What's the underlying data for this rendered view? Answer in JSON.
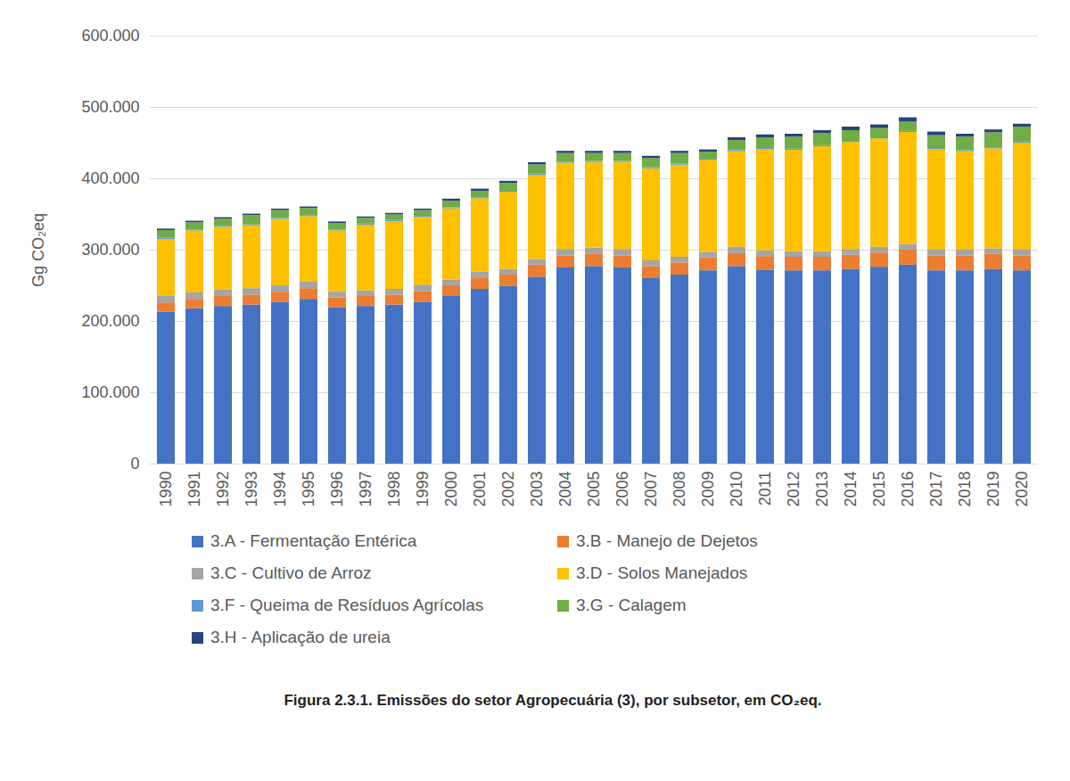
{
  "chart_data": {
    "type": "bar",
    "title": "Figura 2.3.1. Emissões do setor Agropecuária (3), por subsetor, em CO₂eq.",
    "y_label": "Gg CO₂eq",
    "stacked": true,
    "grid": true,
    "legend": "bottom",
    "categories": [
      "1990",
      "1991",
      "1992",
      "1993",
      "1994",
      "1995",
      "1996",
      "1997",
      "1998",
      "1999",
      "2000",
      "2001",
      "2002",
      "2003",
      "2004",
      "2005",
      "2006",
      "2007",
      "2008",
      "2009",
      "2010",
      "2011",
      "2012",
      "2013",
      "2014",
      "2015",
      "2016",
      "2017",
      "2018",
      "2019",
      "2020"
    ],
    "ylim": [
      0,
      600000
    ],
    "yticks": [
      0,
      {
        "value": 100000,
        "label": "100.000"
      },
      {
        "value": 200000,
        "label": "200.000"
      },
      {
        "value": 300000,
        "label": "300.000"
      },
      {
        "value": 400000,
        "label": "400.000"
      },
      {
        "value": 500000,
        "label": "500.000"
      },
      {
        "value": 600000,
        "label": "600.000"
      }
    ],
    "series": [
      {
        "name": "3.A - Fermentação Entérica",
        "color": "#4472c4",
        "values": [
          213000,
          218000,
          221000,
          223000,
          227000,
          231000,
          219000,
          221000,
          223000,
          227000,
          235000,
          245000,
          249000,
          262000,
          275000,
          277000,
          275000,
          260000,
          265000,
          271000,
          277000,
          272000,
          271000,
          271000,
          273000,
          276000,
          279000,
          271000,
          271000,
          273000,
          271000
        ]
      },
      {
        "name": "3.B - Manejo de Dejetos",
        "color": "#ed7d31",
        "values": [
          13000,
          13000,
          14000,
          14000,
          14000,
          15000,
          14000,
          14000,
          14000,
          15000,
          15000,
          16000,
          16000,
          17000,
          17000,
          17000,
          17000,
          17000,
          17000,
          18000,
          18000,
          19000,
          19000,
          19000,
          20000,
          20000,
          21000,
          21000,
          21000,
          21000,
          21000
        ]
      },
      {
        "name": "3.C - Cultivo de Arroz",
        "color": "#a5a5a5",
        "values": [
          9000,
          9000,
          9000,
          9000,
          9000,
          9000,
          8000,
          8000,
          8000,
          9000,
          8000,
          8000,
          8000,
          8000,
          9000,
          9000,
          9000,
          8000,
          8000,
          8000,
          9000,
          8000,
          8000,
          8000,
          8000,
          8000,
          8000,
          8000,
          8000,
          8000,
          8000
        ]
      },
      {
        "name": "3.D - Solos Manejados",
        "color": "#ffc000",
        "values": [
          80000,
          87000,
          88000,
          88000,
          93000,
          92000,
          86000,
          92000,
          95000,
          95000,
          100000,
          103000,
          108000,
          118000,
          121000,
          120000,
          122000,
          129000,
          129000,
          129000,
          134000,
          142000,
          142000,
          147000,
          150000,
          152000,
          157000,
          141000,
          138000,
          140000,
          150000
        ]
      },
      {
        "name": "3.F - Queima de Resíduos Agrícolas",
        "color": "#5b9bd5",
        "values": [
          1500,
          1500,
          1500,
          1500,
          1500,
          1500,
          1500,
          1500,
          1500,
          1500,
          1500,
          1500,
          1500,
          1500,
          1500,
          1500,
          1500,
          1500,
          1500,
          1500,
          1500,
          1500,
          1500,
          1500,
          1500,
          1500,
          1500,
          1500,
          1500,
          1500,
          1500
        ]
      },
      {
        "name": "3.G - Calagem",
        "color": "#70ad47",
        "values": [
          11000,
          10000,
          10000,
          13000,
          11000,
          10000,
          9000,
          8000,
          8000,
          8000,
          9000,
          9000,
          11000,
          13000,
          12000,
          11000,
          11000,
          13000,
          15000,
          10000,
          14000,
          15000,
          17000,
          17000,
          15000,
          13000,
          13000,
          18000,
          19000,
          21000,
          21000
        ]
      },
      {
        "name": "3.H - Aplicação de ureia",
        "color": "#264478",
        "values": [
          2000,
          2000,
          2000,
          2000,
          2000,
          2000,
          2000,
          2000,
          2000,
          2000,
          3000,
          3000,
          3000,
          3000,
          3000,
          3000,
          3000,
          3000,
          3000,
          3000,
          4000,
          4000,
          4000,
          4000,
          5000,
          5000,
          6000,
          5000,
          4000,
          4000,
          4000
        ]
      }
    ]
  }
}
